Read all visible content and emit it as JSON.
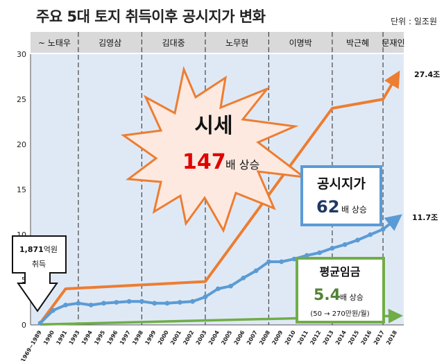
{
  "title": "주요 5대 토지 취득이후 공시지가 변화",
  "unit": "단위 : 일조원",
  "colors": {
    "plot_bg": "#dfe9f6",
    "era_bg": "#d9d9d9",
    "market": "#ed7d31",
    "official": "#5b9bd5",
    "wage": "#70ad47",
    "burst_fill": "#fde9e0",
    "box_border": "#5b9bd5",
    "wage_border": "#70ad47",
    "highlight_red": "#e00000",
    "highlight_navy": "#1f3864"
  },
  "eras": [
    "~ 노태우",
    "김영삼",
    "김대중",
    "노무현",
    "이명박",
    "박근혜",
    "문재인"
  ],
  "annotations": {
    "acquire": {
      "line1_value": "1,871",
      "line1_unit": "억원",
      "line2": "취득"
    },
    "market": {
      "title": "시세",
      "value": "147",
      "suffix": "배 상승"
    },
    "official": {
      "title": "공시지가",
      "value": "62",
      "suffix": "배 상승"
    },
    "wage": {
      "title": "평균임금",
      "value": "5.4",
      "suffix": "배 상승",
      "note": "(50 → 270만원/월)"
    },
    "end_market": "27.4조",
    "end_official": "11.7조"
  },
  "chart_data": {
    "type": "line",
    "categories": [
      "1969~1989",
      "1990",
      "1991",
      "1993",
      "1994",
      "1995",
      "1996",
      "1997",
      "1998",
      "1999",
      "2000",
      "2001",
      "2002",
      "2003",
      "2004",
      "2005",
      "2006",
      "2007",
      "2008",
      "2009",
      "2010",
      "2011",
      "2012",
      "2013",
      "2014",
      "2015",
      "2016",
      "2017",
      "2018"
    ],
    "ylim": [
      0,
      30
    ],
    "yticks": [
      0,
      5,
      10,
      15,
      20,
      25,
      30
    ],
    "grid": false,
    "era_boundaries": [
      "1969~1989",
      "1993",
      "1998",
      "2003",
      "2008",
      "2013",
      "2017"
    ],
    "series": [
      {
        "points": [
          [
            0,
            0.19
          ],
          [
            2,
            4.0
          ],
          [
            13,
            4.8
          ],
          [
            23,
            24.0
          ],
          [
            27,
            25.0
          ],
          [
            28,
            27.4
          ]
        ]
      },
      {
        "values": [
          0.19,
          1.6,
          2.2,
          2.4,
          2.2,
          2.4,
          2.5,
          2.6,
          2.6,
          2.4,
          2.4,
          2.5,
          2.6,
          3.1,
          4.0,
          4.3,
          5.2,
          6.0,
          7.0,
          7.0,
          7.3,
          7.7,
          8.0,
          8.5,
          8.9,
          9.4,
          10.0,
          10.6,
          11.7
        ]
      },
      {
        "points": [
          [
            0,
            0.05
          ],
          [
            28,
            1.0
          ]
        ]
      }
    ]
  }
}
